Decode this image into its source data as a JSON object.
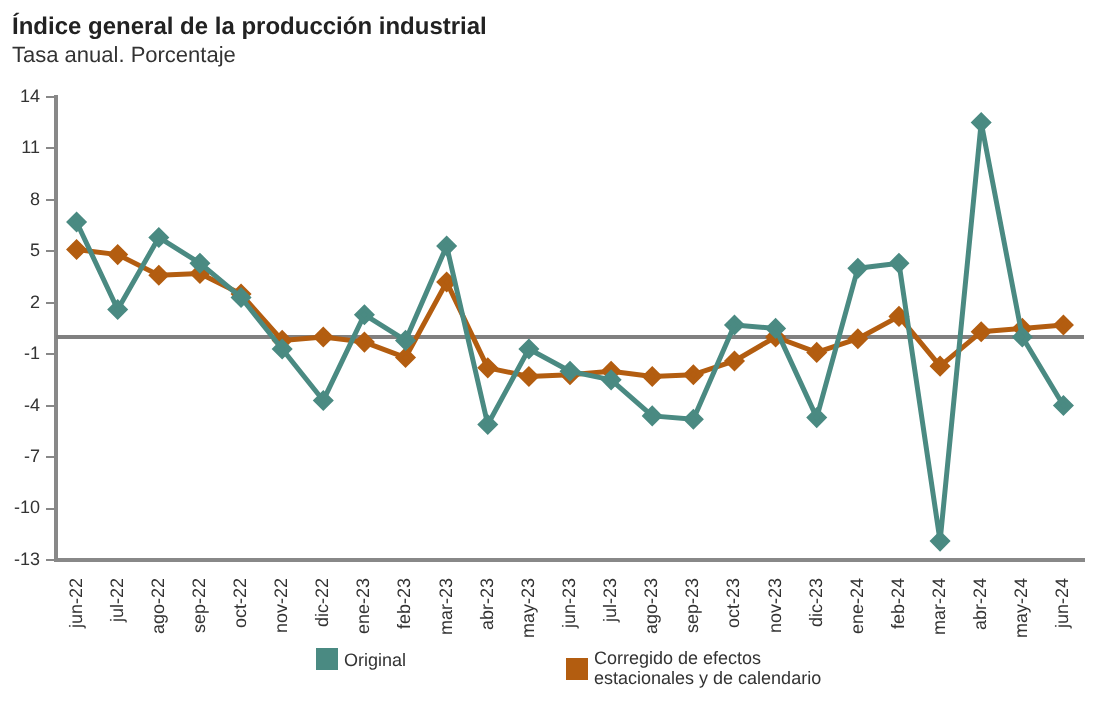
{
  "chart_data": {
    "type": "line",
    "title": "Índice general de la producción industrial",
    "subtitle": "Tasa anual. Porcentaje",
    "categories": [
      "jun-22",
      "jul-22",
      "ago-22",
      "sep-22",
      "oct-22",
      "nov-22",
      "dic-22",
      "ene-23",
      "feb-23",
      "mar-23",
      "abr-23",
      "may-23",
      "jun-23",
      "jul-23",
      "ago-23",
      "sep-23",
      "oct-23",
      "nov-23",
      "dic-23",
      "ene-24",
      "feb-24",
      "mar-24",
      "abr-24",
      "may-24",
      "jun-24"
    ],
    "series": [
      {
        "name": "Original",
        "color": "#4a8a82",
        "values": [
          6.7,
          1.6,
          5.8,
          4.3,
          2.3,
          -0.7,
          -3.7,
          1.3,
          -0.2,
          5.3,
          -5.1,
          -0.7,
          -2.0,
          -2.5,
          -4.6,
          -4.8,
          0.7,
          0.5,
          -4.7,
          4.0,
          4.3,
          -11.9,
          12.5,
          0.0,
          -4.0
        ]
      },
      {
        "name": "Corregido de efectos estacionales y de calendario",
        "color": "#b35d10",
        "values": [
          5.1,
          4.8,
          3.6,
          3.7,
          2.5,
          -0.2,
          0.0,
          -0.3,
          -1.2,
          3.2,
          -1.8,
          -2.3,
          -2.2,
          -2.0,
          -2.3,
          -2.2,
          -1.4,
          0.0,
          -0.9,
          -0.1,
          1.2,
          -1.7,
          0.3,
          0.5,
          0.7
        ]
      }
    ],
    "ylim": [
      -13,
      14
    ],
    "yticks": [
      -13,
      -10,
      -7,
      -4,
      -1,
      2,
      5,
      8,
      11,
      14
    ],
    "ref_lines": [
      {
        "axis": "y",
        "value": 0,
        "color": "#808080"
      }
    ],
    "grid": false,
    "legend": "bottom",
    "marker": "diamond",
    "line_style": "solid"
  }
}
